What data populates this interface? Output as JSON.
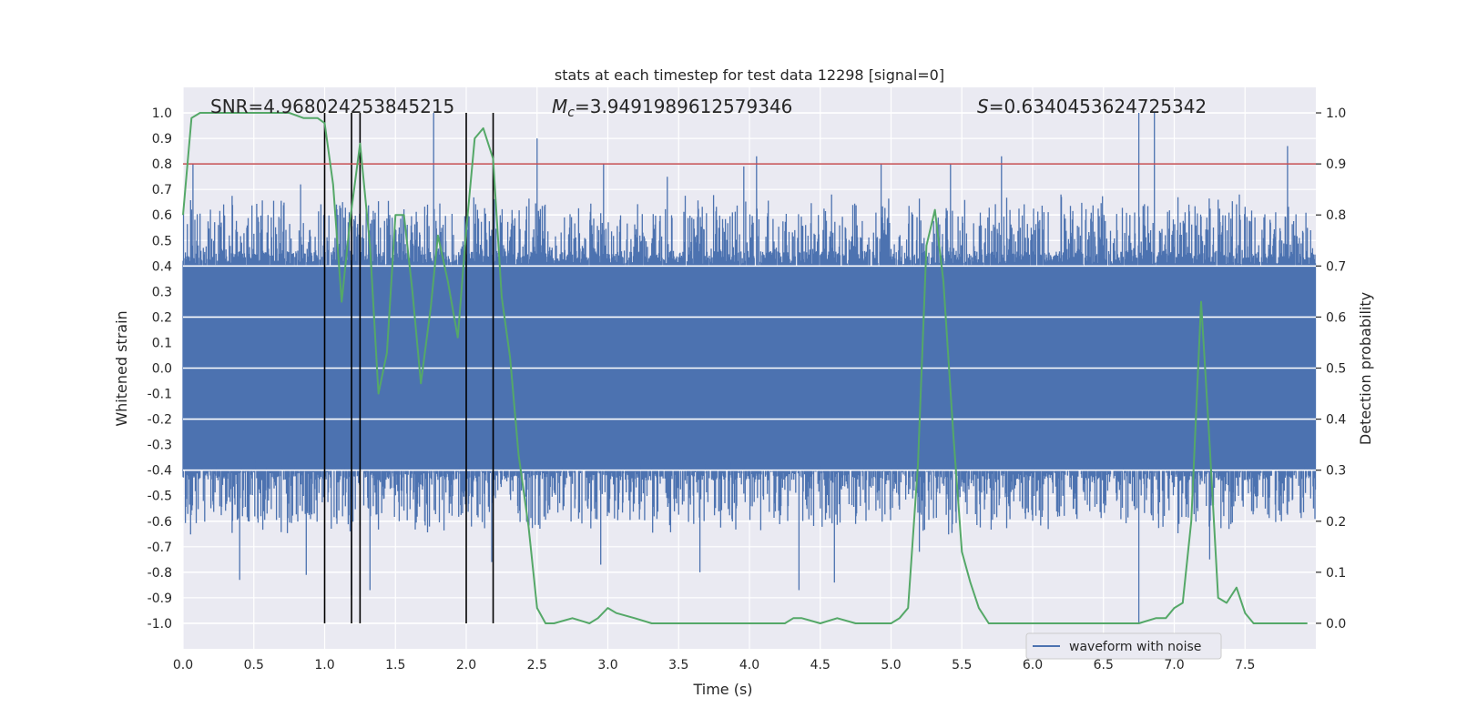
{
  "chart_data": {
    "type": "line",
    "title": "stats at each timestep for test data 12298 [signal=0]",
    "xlabel": "Time (s)",
    "ylabel": "Whitened strain",
    "y2label": "Detection probability",
    "xlim": [
      0.0,
      8.0
    ],
    "ylim": [
      -1.1,
      1.1
    ],
    "y2lim": [
      -0.05,
      1.05
    ],
    "xticks": [
      "0.0",
      "0.5",
      "1.0",
      "1.5",
      "2.0",
      "2.5",
      "3.0",
      "3.5",
      "4.0",
      "4.5",
      "5.0",
      "5.5",
      "6.0",
      "6.5",
      "7.0",
      "7.5"
    ],
    "yticks": [
      "1.0",
      "0.9",
      "0.8",
      "0.7",
      "0.6",
      "0.5",
      "0.4",
      "0.3",
      "0.2",
      "0.1",
      "0.0",
      "-0.1",
      "-0.2",
      "-0.3",
      "-0.4",
      "-0.5",
      "-0.6",
      "-0.7",
      "-0.8",
      "-0.9",
      "-1.0"
    ],
    "y2ticks": [
      "1.0",
      "0.9",
      "0.8",
      "0.7",
      "0.6",
      "0.5",
      "0.4",
      "0.3",
      "0.2",
      "0.1",
      "0.0"
    ],
    "grid": true,
    "legend_position": "lower-right",
    "annotations": {
      "snr": "SNR=4.968024253845215",
      "mc_symbol": "M",
      "mc_sub": "c",
      "mc_value": "=3.9491989612579346",
      "s_symbol": "S",
      "s_value": "=0.6340453624725342"
    },
    "threshold": {
      "value": 0.9,
      "axis": "right",
      "color": "#c44e52"
    },
    "vertical_markers": [
      1.0,
      1.19,
      1.25,
      2.0,
      2.19
    ],
    "series": [
      {
        "name": "waveform with noise",
        "axis": "left",
        "color": "#4c72b0",
        "envelope_note": "dense noise, core amplitude ~0.4",
        "peaks": [
          {
            "t": 0.07,
            "v": 0.8
          },
          {
            "t": 0.27,
            "v": 0.57
          },
          {
            "t": 0.45,
            "v": 0.55
          },
          {
            "t": 0.6,
            "v": 0.6
          },
          {
            "t": 0.83,
            "v": 0.72
          },
          {
            "t": 1.09,
            "v": 0.58
          },
          {
            "t": 1.27,
            "v": 0.56
          },
          {
            "t": 1.55,
            "v": 0.6
          },
          {
            "t": 1.77,
            "v": 1.0
          },
          {
            "t": 2.08,
            "v": 0.62
          },
          {
            "t": 2.5,
            "v": 0.9
          },
          {
            "t": 2.97,
            "v": 0.8
          },
          {
            "t": 3.42,
            "v": 0.75
          },
          {
            "t": 3.96,
            "v": 0.79
          },
          {
            "t": 4.05,
            "v": 0.83
          },
          {
            "t": 4.58,
            "v": 0.68
          },
          {
            "t": 4.93,
            "v": 0.8
          },
          {
            "t": 5.42,
            "v": 0.8
          },
          {
            "t": 5.78,
            "v": 0.83
          },
          {
            "t": 6.2,
            "v": 0.68
          },
          {
            "t": 6.75,
            "v": 1.0
          },
          {
            "t": 6.86,
            "v": 1.0
          },
          {
            "t": 7.46,
            "v": 0.68
          },
          {
            "t": 7.8,
            "v": 0.87
          }
        ],
        "troughs": [
          {
            "t": 0.4,
            "v": -0.83
          },
          {
            "t": 0.87,
            "v": -0.81
          },
          {
            "t": 1.19,
            "v": -0.89
          },
          {
            "t": 1.32,
            "v": -0.87
          },
          {
            "t": 2.18,
            "v": -0.76
          },
          {
            "t": 2.95,
            "v": -0.77
          },
          {
            "t": 3.65,
            "v": -0.8
          },
          {
            "t": 4.35,
            "v": -0.87
          },
          {
            "t": 4.6,
            "v": -0.84
          },
          {
            "t": 5.2,
            "v": -0.72
          },
          {
            "t": 6.75,
            "v": -1.0
          },
          {
            "t": 7.25,
            "v": -0.75
          }
        ]
      },
      {
        "name": "",
        "axis": "right",
        "color": "#55a868",
        "x": [
          0.0,
          0.06,
          0.12,
          0.25,
          0.5,
          0.75,
          0.85,
          0.95,
          1.0,
          1.06,
          1.12,
          1.18,
          1.25,
          1.32,
          1.38,
          1.44,
          1.5,
          1.56,
          1.62,
          1.68,
          1.75,
          1.8,
          1.87,
          1.94,
          2.0,
          2.06,
          2.12,
          2.19,
          2.25,
          2.31,
          2.37,
          2.44,
          2.5,
          2.56,
          2.62,
          2.75,
          2.87,
          2.93,
          3.0,
          3.06,
          3.19,
          3.31,
          3.5,
          3.75,
          4.0,
          4.25,
          4.31,
          4.37,
          4.5,
          4.62,
          4.75,
          5.0,
          5.06,
          5.12,
          5.19,
          5.25,
          5.31,
          5.37,
          5.44,
          5.5,
          5.56,
          5.62,
          5.69,
          5.75,
          6.0,
          6.5,
          6.75,
          6.87,
          6.94,
          7.0,
          7.06,
          7.12,
          7.19,
          7.25,
          7.31,
          7.37,
          7.44,
          7.5,
          7.56,
          7.62,
          7.75,
          7.87,
          7.94
        ],
        "values": [
          0.8,
          0.99,
          1.0,
          1.0,
          1.0,
          1.0,
          0.99,
          0.99,
          0.98,
          0.86,
          0.63,
          0.79,
          0.94,
          0.74,
          0.45,
          0.53,
          0.8,
          0.8,
          0.65,
          0.47,
          0.62,
          0.76,
          0.67,
          0.56,
          0.77,
          0.95,
          0.97,
          0.91,
          0.64,
          0.52,
          0.33,
          0.19,
          0.03,
          0.0,
          0.0,
          0.01,
          0.0,
          0.01,
          0.03,
          0.02,
          0.01,
          0.0,
          0.0,
          0.0,
          0.0,
          0.0,
          0.01,
          0.01,
          0.0,
          0.01,
          0.0,
          0.0,
          0.01,
          0.03,
          0.31,
          0.74,
          0.81,
          0.67,
          0.37,
          0.14,
          0.08,
          0.03,
          0.0,
          0.0,
          0.0,
          0.0,
          0.0,
          0.01,
          0.01,
          0.03,
          0.04,
          0.2,
          0.63,
          0.35,
          0.05,
          0.04,
          0.07,
          0.02,
          0.0,
          0.0,
          0.0,
          0.0,
          0.0
        ]
      }
    ]
  }
}
